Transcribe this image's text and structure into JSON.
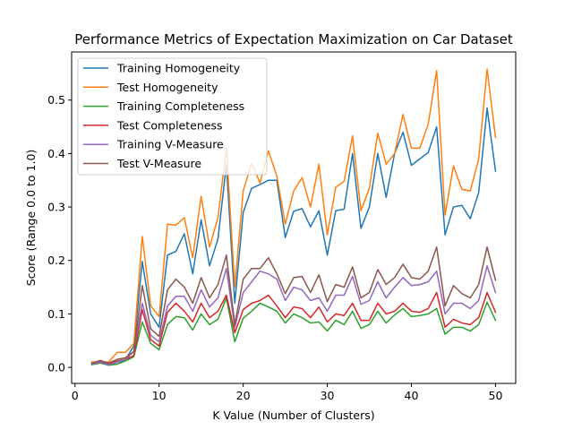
{
  "chart_data": {
    "type": "line",
    "title": "Performance Metrics of Expectation Maximization on Car Dataset",
    "xlabel": "K Value (Number of Clusters)",
    "ylabel": "Score (Range 0.0 to 1.0)",
    "xlim": [
      -0.4,
      52.4
    ],
    "ylim": [
      -0.03,
      0.59
    ],
    "xticks": [
      0,
      10,
      20,
      30,
      40,
      50
    ],
    "yticks": [
      0.0,
      0.1,
      0.2,
      0.3,
      0.4,
      0.5
    ],
    "xtick_labels": [
      "0",
      "10",
      "20",
      "30",
      "40",
      "50"
    ],
    "ytick_labels": [
      "0.0",
      "0.1",
      "0.2",
      "0.3",
      "0.4",
      "0.5"
    ],
    "grid": false,
    "legend_position": "upper-left",
    "x": [
      2,
      3,
      4,
      5,
      6,
      7,
      8,
      9,
      10,
      11,
      12,
      13,
      14,
      15,
      16,
      17,
      18,
      19,
      20,
      21,
      22,
      23,
      24,
      25,
      26,
      27,
      28,
      29,
      30,
      31,
      32,
      33,
      34,
      35,
      36,
      37,
      38,
      39,
      40,
      41,
      42,
      43,
      44,
      45,
      46,
      47,
      48,
      49,
      50
    ],
    "series": [
      {
        "name": "Training Homogeneity",
        "color": "#1f77b4",
        "values": [
          0.008,
          0.012,
          0.006,
          0.006,
          0.015,
          0.04,
          0.198,
          0.1,
          0.075,
          0.21,
          0.217,
          0.25,
          0.175,
          0.276,
          0.19,
          0.24,
          0.38,
          0.12,
          0.29,
          0.335,
          0.342,
          0.35,
          0.35,
          0.243,
          0.292,
          0.297,
          0.263,
          0.293,
          0.21,
          0.293,
          0.296,
          0.4,
          0.26,
          0.3,
          0.4,
          0.318,
          0.4,
          0.44,
          0.378,
          0.39,
          0.402,
          0.45,
          0.248,
          0.3,
          0.303,
          0.278,
          0.327,
          0.485,
          0.367
        ]
      },
      {
        "name": "Test Homogeneity",
        "color": "#ff7f0e",
        "values": [
          0.01,
          0.01,
          0.01,
          0.028,
          0.028,
          0.045,
          0.245,
          0.115,
          0.095,
          0.268,
          0.266,
          0.28,
          0.205,
          0.32,
          0.225,
          0.28,
          0.41,
          0.15,
          0.33,
          0.382,
          0.345,
          0.405,
          0.358,
          0.268,
          0.33,
          0.355,
          0.3,
          0.38,
          0.248,
          0.337,
          0.348,
          0.433,
          0.293,
          0.335,
          0.438,
          0.38,
          0.4,
          0.473,
          0.41,
          0.41,
          0.455,
          0.555,
          0.285,
          0.377,
          0.333,
          0.33,
          0.39,
          0.558,
          0.43
        ]
      },
      {
        "name": "Training Completeness",
        "color": "#2ca02c",
        "values": [
          0.005,
          0.008,
          0.004,
          0.006,
          0.012,
          0.02,
          0.085,
          0.045,
          0.033,
          0.08,
          0.095,
          0.093,
          0.07,
          0.1,
          0.08,
          0.09,
          0.13,
          0.048,
          0.092,
          0.105,
          0.12,
          0.113,
          0.105,
          0.083,
          0.1,
          0.093,
          0.083,
          0.085,
          0.068,
          0.088,
          0.08,
          0.105,
          0.073,
          0.08,
          0.105,
          0.083,
          0.098,
          0.11,
          0.095,
          0.097,
          0.1,
          0.11,
          0.062,
          0.075,
          0.075,
          0.068,
          0.08,
          0.122,
          0.088
        ]
      },
      {
        "name": "Test Completeness",
        "color": "#d62728",
        "values": [
          0.007,
          0.012,
          0.006,
          0.012,
          0.015,
          0.022,
          0.108,
          0.052,
          0.04,
          0.103,
          0.12,
          0.105,
          0.085,
          0.12,
          0.093,
          0.105,
          0.135,
          0.065,
          0.108,
          0.12,
          0.125,
          0.135,
          0.115,
          0.093,
          0.113,
          0.11,
          0.093,
          0.113,
          0.085,
          0.1,
          0.097,
          0.12,
          0.088,
          0.088,
          0.12,
          0.1,
          0.105,
          0.12,
          0.105,
          0.103,
          0.11,
          0.14,
          0.075,
          0.09,
          0.083,
          0.08,
          0.093,
          0.14,
          0.103
        ]
      },
      {
        "name": "Training V-Measure",
        "color": "#9467bd",
        "values": [
          0.006,
          0.01,
          0.005,
          0.01,
          0.015,
          0.03,
          0.12,
          0.06,
          0.048,
          0.115,
          0.133,
          0.133,
          0.105,
          0.145,
          0.113,
          0.13,
          0.185,
          0.075,
          0.14,
          0.16,
          0.18,
          0.175,
          0.165,
          0.125,
          0.15,
          0.145,
          0.125,
          0.13,
          0.105,
          0.135,
          0.135,
          0.17,
          0.118,
          0.125,
          0.16,
          0.13,
          0.15,
          0.168,
          0.153,
          0.155,
          0.16,
          0.18,
          0.1,
          0.12,
          0.12,
          0.11,
          0.125,
          0.19,
          0.14
        ]
      },
      {
        "name": "Test V-Measure",
        "color": "#8c564b",
        "values": [
          0.008,
          0.013,
          0.008,
          0.015,
          0.018,
          0.03,
          0.153,
          0.072,
          0.058,
          0.145,
          0.165,
          0.15,
          0.12,
          0.168,
          0.13,
          0.155,
          0.21,
          0.08,
          0.165,
          0.185,
          0.185,
          0.205,
          0.175,
          0.138,
          0.168,
          0.17,
          0.14,
          0.173,
          0.123,
          0.155,
          0.15,
          0.188,
          0.13,
          0.14,
          0.183,
          0.155,
          0.168,
          0.193,
          0.168,
          0.165,
          0.18,
          0.225,
          0.115,
          0.153,
          0.138,
          0.13,
          0.155,
          0.225,
          0.163
        ]
      }
    ]
  }
}
